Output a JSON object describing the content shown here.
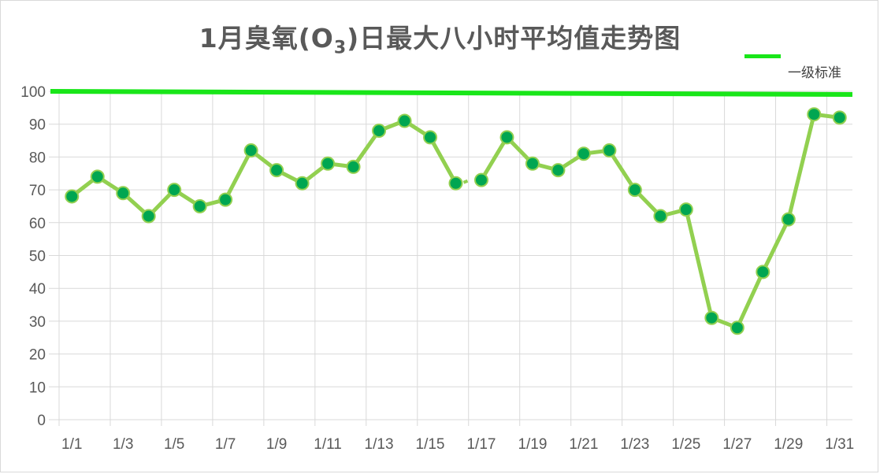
{
  "chart_data": {
    "type": "line",
    "title_main": "1月臭氧(O",
    "title_sub": "3",
    "title_end": ")日最大八小时平均值走势图",
    "categories": [
      "1/1",
      "1/2",
      "1/3",
      "1/4",
      "1/5",
      "1/6",
      "1/7",
      "1/8",
      "1/9",
      "1/10",
      "1/11",
      "1/12",
      "1/13",
      "1/14",
      "1/15",
      "1/16",
      "1/17",
      "1/18",
      "1/19",
      "1/20",
      "1/21",
      "1/22",
      "1/23",
      "1/24",
      "1/25",
      "1/26",
      "1/27",
      "1/28",
      "1/29",
      "1/30",
      "1/31"
    ],
    "x_tick_labels": [
      "1/1",
      "1/3",
      "1/5",
      "1/7",
      "1/9",
      "1/11",
      "1/13",
      "1/15",
      "1/17",
      "1/19",
      "1/21",
      "1/23",
      "1/25",
      "1/27",
      "1/29",
      "1/31"
    ],
    "series": [
      {
        "values": [
          68,
          74,
          69,
          62,
          70,
          65,
          67,
          82,
          76,
          72,
          78,
          77,
          88,
          91,
          86,
          72,
          73,
          86,
          78,
          76,
          81,
          82,
          70,
          62,
          64,
          31,
          28,
          45,
          61,
          93,
          92
        ],
        "line_color": "#92d050",
        "marker_color": "#00a651"
      }
    ],
    "reference_line": {
      "name": "一级标准",
      "value": 100,
      "color": "#19e619"
    },
    "ylim": [
      0,
      100
    ],
    "y_ticks": [
      0,
      10,
      20,
      30,
      40,
      50,
      60,
      70,
      80,
      90,
      100
    ],
    "grid": true,
    "legend_position": "top-right"
  }
}
